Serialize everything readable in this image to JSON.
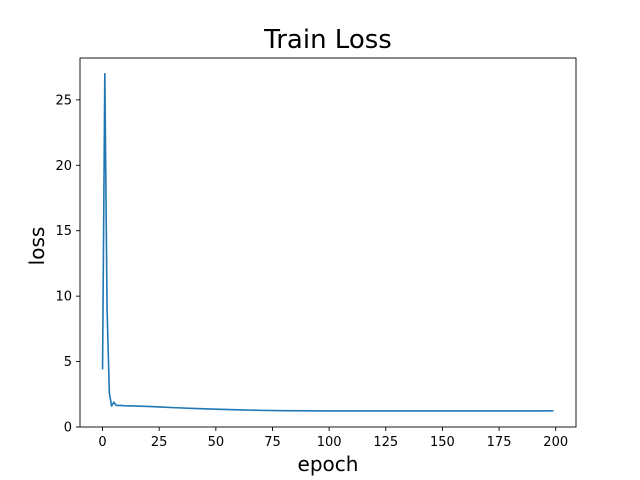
{
  "chart_data": {
    "type": "line",
    "title": "Train Loss",
    "xlabel": "epoch",
    "ylabel": "loss",
    "xlim": [
      -9.95,
      208.95
    ],
    "ylim": [
      0,
      28.2
    ],
    "xticks": [
      0,
      25,
      50,
      75,
      100,
      125,
      150,
      175,
      200
    ],
    "yticks": [
      0,
      5,
      10,
      15,
      20,
      25
    ],
    "grid": false,
    "legend": "none",
    "series": [
      {
        "color": "#1f77b4",
        "x": [
          0,
          1,
          2,
          3,
          4,
          5,
          6,
          8,
          10,
          15,
          20,
          25,
          30,
          40,
          50,
          60,
          70,
          80,
          90,
          100,
          110,
          120,
          130,
          140,
          150,
          160,
          170,
          180,
          190,
          199
        ],
        "y": [
          4.4,
          27.0,
          9.0,
          2.6,
          1.6,
          1.9,
          1.65,
          1.65,
          1.62,
          1.6,
          1.57,
          1.53,
          1.49,
          1.42,
          1.36,
          1.31,
          1.27,
          1.25,
          1.24,
          1.23,
          1.23,
          1.23,
          1.23,
          1.23,
          1.23,
          1.23,
          1.23,
          1.23,
          1.23,
          1.24
        ]
      }
    ]
  }
}
